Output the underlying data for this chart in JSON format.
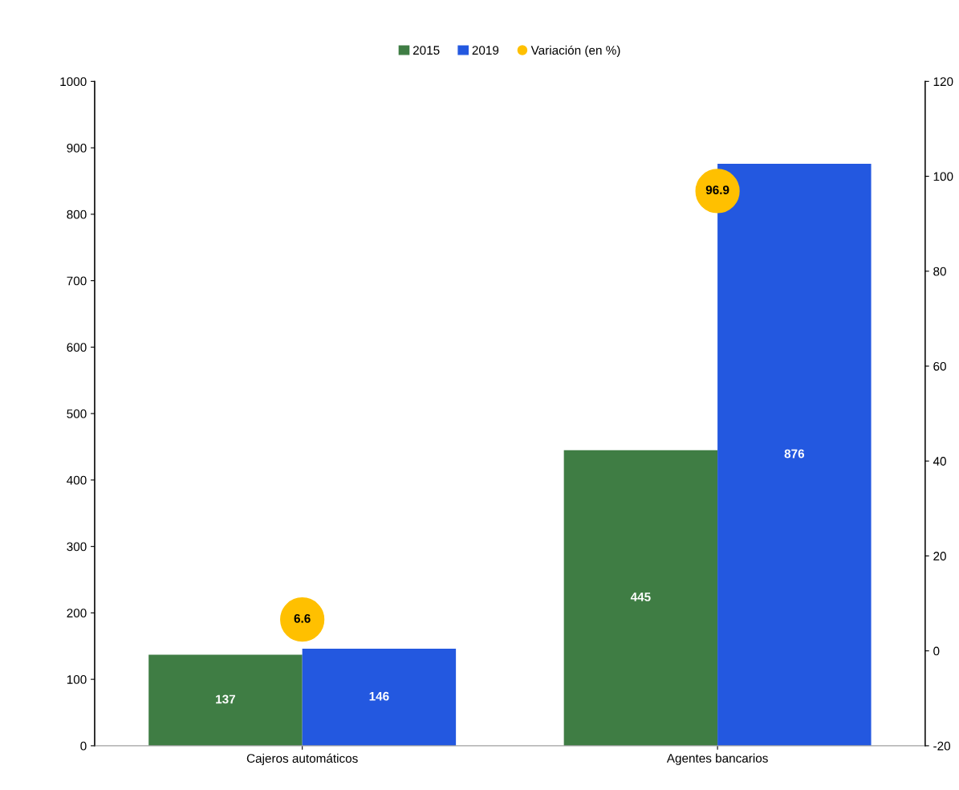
{
  "chart_data": {
    "type": "bar",
    "categories": [
      "Cajeros automáticos",
      "Agentes bancarios"
    ],
    "series": [
      {
        "name": "2015",
        "color": "#3f7d44",
        "values": [
          137,
          445
        ]
      },
      {
        "name": "2019",
        "color": "#2358e0",
        "values": [
          146,
          876
        ]
      },
      {
        "name": "Variación (en %)",
        "type": "scatter",
        "axis": "y2",
        "color": "#ffc000",
        "marker": "circle",
        "values": [
          6.6,
          96.9
        ]
      }
    ],
    "ylim": [
      0,
      1000
    ],
    "yticks": [
      0,
      100,
      200,
      300,
      400,
      500,
      600,
      700,
      800,
      900,
      1000
    ],
    "y2lim": [
      -20,
      120
    ],
    "y2ticks": [
      -20,
      0,
      20,
      40,
      60,
      80,
      100,
      120
    ],
    "data_labels": true,
    "legend": "top",
    "grid": false
  }
}
